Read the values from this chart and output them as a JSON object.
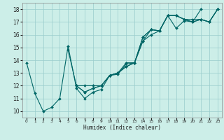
{
  "xlabel": "Humidex (Indice chaleur)",
  "bg_color": "#cceee8",
  "grid_color": "#99cccc",
  "line_color": "#006666",
  "xlim": [
    -0.5,
    23.5
  ],
  "ylim": [
    9.5,
    18.5
  ],
  "xticks": [
    0,
    1,
    2,
    3,
    4,
    5,
    6,
    7,
    8,
    9,
    10,
    11,
    12,
    13,
    14,
    15,
    16,
    17,
    18,
    19,
    20,
    21,
    22,
    23
  ],
  "yticks": [
    10,
    11,
    12,
    13,
    14,
    15,
    16,
    17,
    18
  ],
  "series": [
    {
      "x": [
        0,
        1,
        2,
        3,
        4,
        5,
        6,
        7,
        8,
        9,
        10,
        11,
        12,
        13,
        14,
        15,
        16,
        17,
        18,
        19,
        20,
        21
      ],
      "y": [
        13.8,
        11.4,
        10.0,
        10.3,
        11.0,
        15.1,
        11.8,
        11.0,
        11.5,
        11.7,
        12.8,
        12.9,
        13.7,
        13.8,
        15.8,
        16.4,
        16.3,
        17.5,
        16.5,
        17.1,
        17.0,
        18.0
      ]
    },
    {
      "x": [
        6,
        7,
        8,
        9,
        10,
        11,
        12,
        13,
        14,
        15,
        16,
        17,
        18,
        19,
        20,
        21,
        22,
        23
      ],
      "y": [
        12.0,
        12.0,
        12.0,
        12.0,
        12.8,
        13.0,
        13.8,
        13.8,
        15.8,
        16.4,
        16.3,
        17.5,
        17.5,
        17.2,
        17.2,
        17.2,
        17.0,
        18.0
      ]
    },
    {
      "x": [
        5,
        6,
        7,
        8,
        9,
        10,
        11,
        12,
        13,
        14,
        15,
        16,
        17,
        18,
        19,
        20,
        21,
        22,
        23
      ],
      "y": [
        14.8,
        12.0,
        11.5,
        11.8,
        12.0,
        12.8,
        13.0,
        13.5,
        13.8,
        15.5,
        16.4,
        16.3,
        17.5,
        17.5,
        17.2,
        17.0,
        17.2,
        17.0,
        18.0
      ]
    },
    {
      "x": [
        6,
        7,
        8,
        9,
        10,
        11,
        12,
        13,
        14,
        15,
        16,
        17,
        18,
        19,
        20,
        21,
        22,
        23
      ],
      "y": [
        12.0,
        11.5,
        11.8,
        12.0,
        12.8,
        13.0,
        13.5,
        13.8,
        15.5,
        16.0,
        16.3,
        17.5,
        17.5,
        17.2,
        17.0,
        17.2,
        17.0,
        18.0
      ]
    }
  ]
}
